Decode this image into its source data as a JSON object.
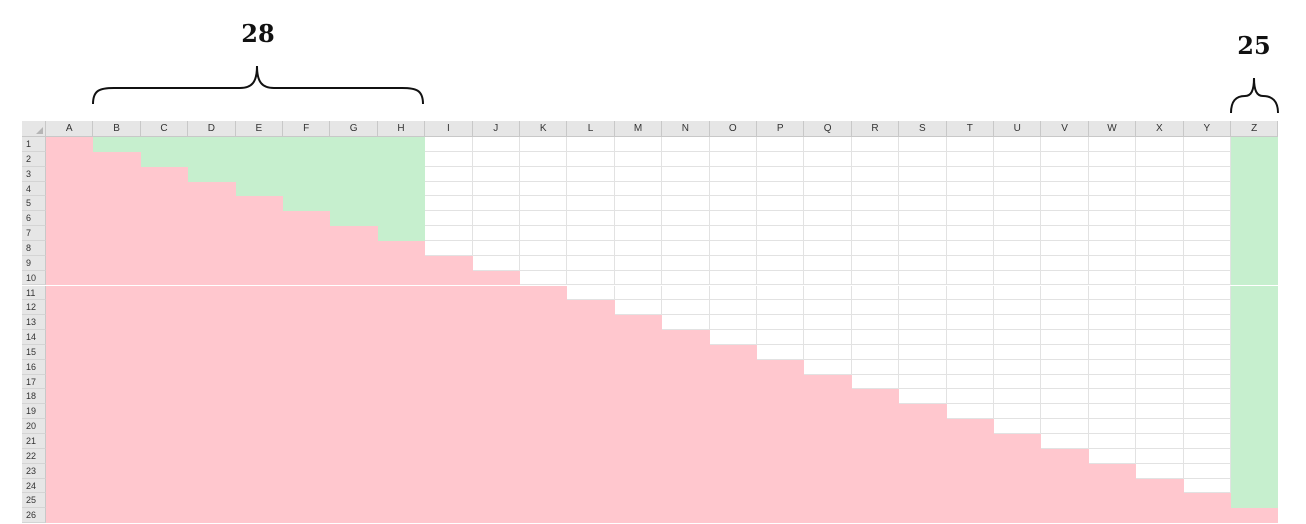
{
  "annotations": {
    "left_count": "28",
    "right_count": "25"
  },
  "sheet": {
    "columns": [
      "A",
      "B",
      "C",
      "D",
      "E",
      "F",
      "G",
      "H",
      "I",
      "J",
      "K",
      "L",
      "M",
      "N",
      "O",
      "P",
      "Q",
      "R",
      "S",
      "T",
      "U",
      "V",
      "W",
      "X",
      "Y",
      "Z"
    ],
    "rows": [
      "1",
      "2",
      "3",
      "4",
      "5",
      "6",
      "7",
      "8",
      "9",
      "10",
      "11",
      "12",
      "13",
      "14",
      "15",
      "16",
      "17",
      "18",
      "19",
      "20",
      "21",
      "22",
      "23",
      "24",
      "25",
      "26"
    ],
    "green_block_columns": [
      "B",
      "C",
      "D",
      "E",
      "F",
      "G",
      "H"
    ],
    "green_stripe_column": "Z"
  },
  "colors": {
    "pink": "#ffc7ce",
    "green": "#c6efce",
    "header_bg": "#e6e6e6",
    "gridline": "#e2e2e2"
  }
}
